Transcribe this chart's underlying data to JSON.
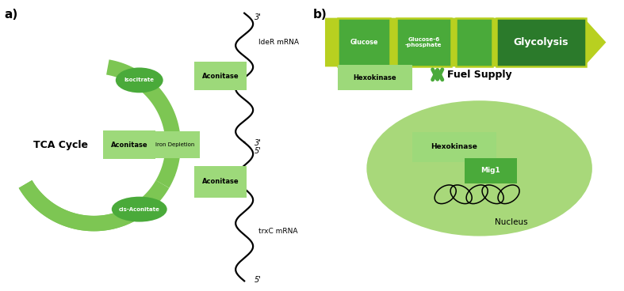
{
  "fig_width": 7.87,
  "fig_height": 3.68,
  "bg_color": "#ffffff",
  "panel_a_label": "a)",
  "panel_b_label": "b)",
  "tca_cycle_text": "TCA Cycle",
  "aconitase_text": "Aconitase",
  "isocitrate_text": "Isocitrate",
  "cis_aconitate_text": "cis-Aconitate",
  "iron_depletion_text": "Iron Depletion",
  "ideR_mrna_text": "IdeR mRNA",
  "trxC_mrna_text": "trxC mRNA",
  "prime3_top": "3'",
  "prime3_mid": "3'",
  "prime5_mid": "5'",
  "prime5_bot": "5'",
  "glucose_text": "Glucose",
  "glucose6p_text": "Glucose-6\n-phosphate",
  "glycolysis_text": "Glycolysis",
  "hexokinase_text": "Hexokinase",
  "fuel_supply_text": "Fuel Supply",
  "nucleus_text": "Nucleus",
  "mig1_text": "Mig1",
  "hexokinase2_text": "Hexokinase",
  "light_green": "#7dc653",
  "medium_green": "#4aaa3a",
  "dark_green": "#2b7a2b",
  "arrow_green": "#4aaa3a",
  "tca_arrow_green": "#7dc653",
  "nucleus_fill": "#a8d87a",
  "yellow_green": "#b8d020",
  "box_light_green": "#9dd97a",
  "glycolysis_dark": "#2b7a2b",
  "fuel_arrow_color": "#4aaa3a",
  "hex_box_color": "#9dd97a"
}
